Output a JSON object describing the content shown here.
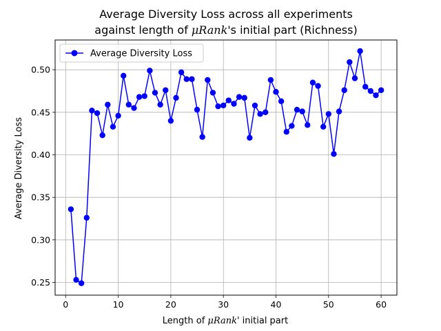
{
  "chart_data": {
    "type": "line",
    "title_line1": "Average Diversity Loss across all experiments",
    "title_line2_prefix": "against length of ",
    "title_line2_math": "μRank",
    "title_line2_suffix": "'s initial part (Richness)",
    "xlabel_prefix": "Length of ",
    "xlabel_math": "μRank",
    "xlabel_suffix": "' initial part",
    "ylabel": "Average Diversity Loss",
    "xlim": [
      -2,
      63
    ],
    "ylim": [
      0.235,
      0.535
    ],
    "x_ticks": [
      0,
      10,
      20,
      30,
      40,
      50,
      60
    ],
    "y_ticks": [
      0.25,
      0.3,
      0.35,
      0.4,
      0.45,
      0.5
    ],
    "y_tick_labels": [
      "0.25",
      "0.30",
      "0.35",
      "0.40",
      "0.45",
      "0.50"
    ],
    "grid": true,
    "legend_position": "top-left",
    "series": [
      {
        "name": "Average Diversity Loss",
        "color": "#0000ff",
        "marker": "circle",
        "x": [
          1,
          2,
          3,
          4,
          5,
          6,
          7,
          8,
          9,
          10,
          11,
          12,
          13,
          14,
          15,
          16,
          17,
          18,
          19,
          20,
          21,
          22,
          23,
          24,
          25,
          26,
          27,
          28,
          29,
          30,
          31,
          32,
          33,
          34,
          35,
          36,
          37,
          38,
          39,
          40,
          41,
          42,
          43,
          44,
          45,
          46,
          47,
          48,
          49,
          50,
          51,
          52,
          53,
          54,
          55,
          56,
          57,
          58,
          59,
          60
        ],
        "y": [
          0.336,
          0.253,
          0.249,
          0.326,
          0.452,
          0.449,
          0.423,
          0.459,
          0.433,
          0.446,
          0.493,
          0.459,
          0.455,
          0.468,
          0.469,
          0.499,
          0.473,
          0.459,
          0.476,
          0.44,
          0.467,
          0.497,
          0.489,
          0.489,
          0.453,
          0.421,
          0.488,
          0.473,
          0.457,
          0.458,
          0.464,
          0.46,
          0.468,
          0.467,
          0.42,
          0.458,
          0.448,
          0.45,
          0.488,
          0.474,
          0.463,
          0.427,
          0.434,
          0.453,
          0.451,
          0.435,
          0.485,
          0.481,
          0.433,
          0.448,
          0.401,
          0.451,
          0.476,
          0.509,
          0.49,
          0.522,
          0.48,
          0.475,
          0.47,
          0.476
        ]
      }
    ]
  }
}
